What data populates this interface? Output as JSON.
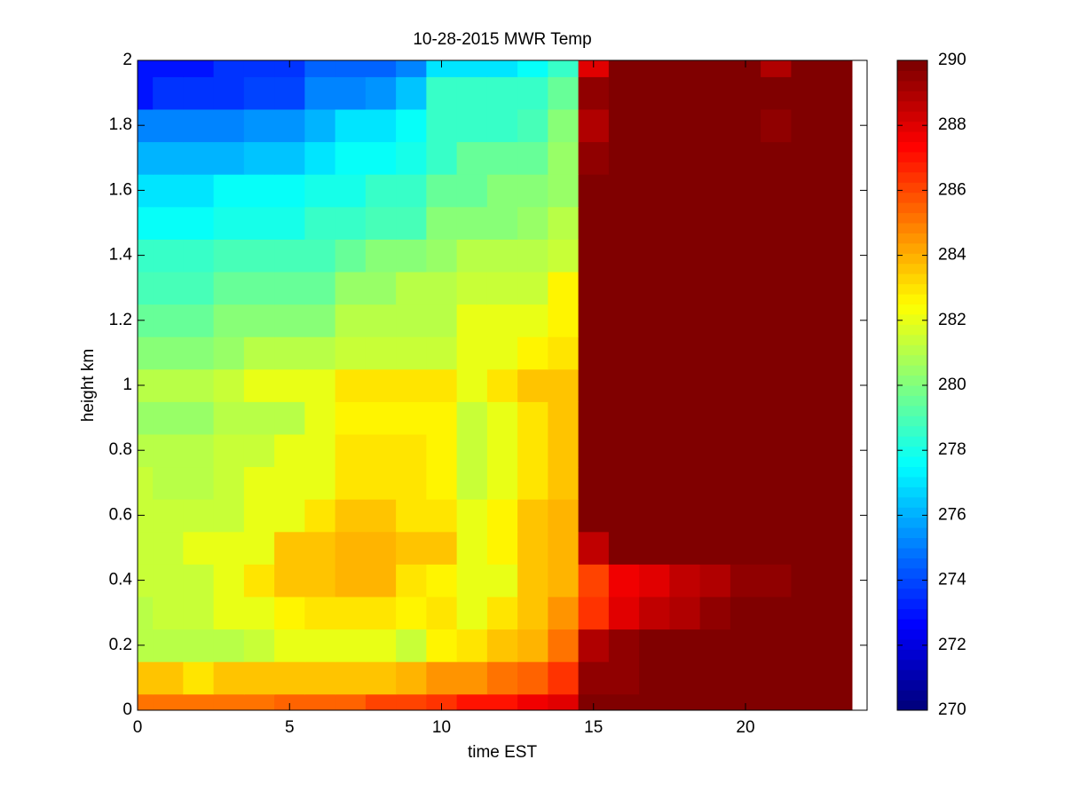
{
  "chart_data": {
    "type": "heatmap",
    "title": "10-28-2015 MWR Temp",
    "xlabel": "time EST",
    "ylabel": "height km",
    "x": [
      0,
      1,
      2,
      3,
      4,
      5,
      6,
      7,
      8,
      9,
      10,
      11,
      12,
      13,
      14,
      15,
      16,
      17,
      18,
      19,
      20,
      21,
      22,
      23
    ],
    "y": [
      0,
      0.1,
      0.2,
      0.3,
      0.4,
      0.5,
      0.6,
      0.7,
      0.8,
      0.9,
      1.0,
      1.1,
      1.2,
      1.3,
      1.4,
      1.5,
      1.6,
      1.7,
      1.8,
      1.9,
      2.0
    ],
    "z": [
      [
        285,
        285,
        285,
        285,
        285,
        285.5,
        285.5,
        285.5,
        286,
        286,
        286.5,
        287,
        287,
        287.5,
        288,
        290,
        290,
        290,
        291,
        291,
        291,
        291,
        291,
        291
      ],
      [
        283.5,
        283.5,
        283,
        283.5,
        283.5,
        283.5,
        283.5,
        283.5,
        283.5,
        284,
        284.5,
        284.5,
        285,
        285.5,
        286.5,
        289.5,
        289.5,
        291,
        291,
        291,
        291,
        291,
        291,
        291
      ],
      [
        281,
        281,
        281,
        281,
        281.5,
        282,
        282,
        282,
        282,
        281.5,
        282.5,
        283,
        283.5,
        284,
        285,
        289,
        289.5,
        291,
        291,
        291,
        291,
        291,
        291,
        291
      ],
      [
        281,
        281.5,
        281.5,
        282,
        282,
        282.5,
        283,
        283,
        283,
        282.5,
        283,
        282,
        283,
        283.5,
        284.5,
        286.5,
        288,
        288.5,
        289,
        289.5,
        290,
        290,
        291,
        291
      ],
      [
        281.5,
        281.5,
        281.5,
        282,
        283,
        283.5,
        283.5,
        284,
        284,
        283,
        282.5,
        282,
        282,
        283.5,
        284,
        286,
        287.5,
        288,
        288.5,
        289,
        289.5,
        289.5,
        291,
        291
      ],
      [
        281.5,
        281.5,
        282,
        282,
        282,
        283.5,
        283.5,
        284,
        284,
        283.5,
        283.5,
        282,
        282.5,
        283.5,
        284,
        288.5,
        291,
        291,
        291,
        291,
        291,
        291,
        291,
        291
      ],
      [
        281.5,
        281.5,
        281.5,
        281.5,
        282,
        282,
        283,
        283.5,
        283.5,
        283,
        283,
        282,
        282.5,
        283.5,
        284,
        291,
        291,
        291,
        291,
        291,
        291,
        291,
        291,
        291
      ],
      [
        281.5,
        281,
        281,
        281.5,
        282,
        282,
        282,
        283,
        283,
        283,
        282.5,
        281.5,
        282,
        283,
        283.5,
        291,
        291,
        291,
        291,
        291,
        291,
        291,
        291,
        291
      ],
      [
        281,
        281,
        281,
        281.5,
        281.5,
        282,
        282,
        283,
        283,
        283,
        282.5,
        281.5,
        282,
        283,
        283.5,
        291,
        291,
        291,
        291,
        291,
        291,
        291,
        291,
        291
      ],
      [
        280.5,
        280.5,
        280.5,
        281,
        281,
        281,
        282,
        282.5,
        282.5,
        282.5,
        282.5,
        281.5,
        282,
        283,
        283.5,
        291,
        291,
        291,
        291,
        291,
        291,
        291,
        291,
        291
      ],
      [
        281,
        281,
        281,
        281.5,
        282,
        282,
        282,
        283,
        283,
        283,
        283,
        282,
        283,
        283.5,
        283.5,
        291,
        291,
        291,
        291,
        291,
        291,
        291,
        291,
        291
      ],
      [
        280,
        280,
        280,
        280.5,
        281,
        281,
        281,
        281.5,
        281.5,
        281.5,
        281.5,
        282,
        282,
        282.5,
        283,
        291,
        291,
        291,
        291,
        291,
        291,
        291,
        291,
        291
      ],
      [
        279.5,
        279.5,
        279.5,
        280,
        280,
        280,
        280,
        281,
        281,
        281,
        281,
        282,
        282,
        282,
        282.5,
        291,
        291,
        291,
        291,
        291,
        291,
        291,
        291,
        291
      ],
      [
        279,
        279,
        279,
        279.5,
        279.5,
        279.5,
        279.5,
        280.5,
        280.5,
        281,
        281,
        281.5,
        281.5,
        281.5,
        282.5,
        291,
        291,
        291,
        291,
        291,
        291,
        291,
        291,
        291
      ],
      [
        278.5,
        278.5,
        278.5,
        279,
        279,
        279,
        279,
        279.5,
        280,
        280,
        280.5,
        281,
        281,
        281,
        281.5,
        291,
        291,
        291,
        291,
        291,
        291,
        291,
        291,
        291
      ],
      [
        277.5,
        277.5,
        277.5,
        278,
        278,
        278,
        278.5,
        278.5,
        279,
        279,
        280,
        280,
        280,
        280.5,
        281,
        291,
        291,
        291,
        291,
        291,
        291,
        291,
        291,
        291
      ],
      [
        277,
        277,
        277,
        277.5,
        277.5,
        277.5,
        278,
        278,
        278.5,
        278.5,
        279.5,
        279.5,
        280,
        280,
        280.5,
        291,
        291,
        291,
        291,
        291,
        291,
        291,
        291,
        291
      ],
      [
        276,
        276,
        276,
        276,
        276.5,
        276.5,
        277,
        277.5,
        277.5,
        278,
        278.5,
        279.5,
        279.5,
        279.5,
        280.5,
        289.5,
        291,
        291,
        291,
        291,
        291,
        291,
        291,
        291
      ],
      [
        275,
        275,
        275,
        275,
        275.5,
        275.5,
        276,
        277,
        277,
        277.5,
        278.5,
        278.5,
        278.5,
        279,
        280,
        289,
        291,
        291,
        291,
        291,
        291,
        289.5,
        291,
        291
      ],
      [
        273,
        273.5,
        273.5,
        273.5,
        274,
        274,
        275,
        275,
        275.5,
        276.5,
        278.5,
        278.5,
        278.5,
        278.5,
        279.5,
        289.5,
        291,
        291,
        291,
        291,
        291,
        291,
        291,
        291
      ],
      [
        273,
        273,
        273,
        273.5,
        273.5,
        273.5,
        274.5,
        274.5,
        274.5,
        275,
        277,
        277,
        277,
        277.5,
        278.5,
        288,
        291,
        291,
        291,
        291,
        291,
        289,
        291,
        291
      ]
    ],
    "xlim": [
      0,
      24
    ],
    "ylim": [
      0,
      2
    ],
    "xticks": [
      0,
      5,
      10,
      15,
      20
    ],
    "yticks": [
      0,
      0.2,
      0.4,
      0.6,
      0.8,
      1,
      1.2,
      1.4,
      1.6,
      1.8,
      2
    ],
    "colormap": "jet",
    "clim": [
      270,
      290
    ],
    "cticks": [
      270,
      272,
      274,
      276,
      278,
      280,
      282,
      284,
      286,
      288,
      290
    ]
  }
}
